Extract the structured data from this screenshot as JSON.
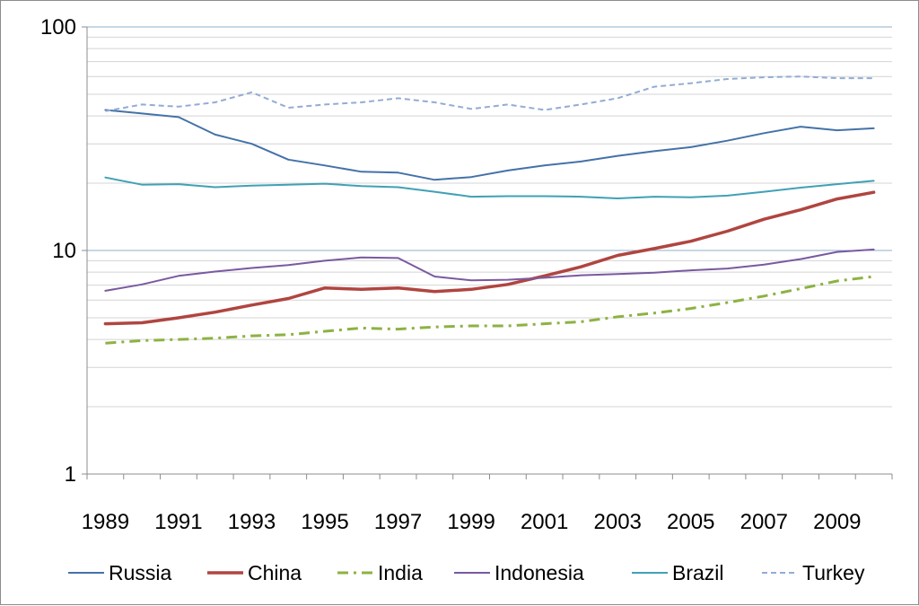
{
  "chart_data": {
    "type": "line",
    "title": "",
    "xlabel": "",
    "ylabel": "",
    "yscale": "log",
    "ylim": [
      1,
      100
    ],
    "xlim": [
      1989,
      2010
    ],
    "y_ticks": [
      {
        "value": 1,
        "label": "1"
      },
      {
        "value": 10,
        "label": "10"
      },
      {
        "value": 100,
        "label": "100"
      }
    ],
    "x_ticks": [
      {
        "value": 1989,
        "label": "1989"
      },
      {
        "value": 1991,
        "label": "1991"
      },
      {
        "value": 1993,
        "label": "1993"
      },
      {
        "value": 1995,
        "label": "1995"
      },
      {
        "value": 1997,
        "label": "1997"
      },
      {
        "value": 1999,
        "label": "1999"
      },
      {
        "value": 2001,
        "label": "2001"
      },
      {
        "value": 2003,
        "label": "2003"
      },
      {
        "value": 2005,
        "label": "2005"
      },
      {
        "value": 2007,
        "label": "2007"
      },
      {
        "value": 2009,
        "label": "2009"
      }
    ],
    "grid": true,
    "legend_position": "bottom",
    "x": [
      1989,
      1990,
      1991,
      1992,
      1993,
      1994,
      1995,
      1996,
      1997,
      1998,
      1999,
      2000,
      2001,
      2002,
      2003,
      2004,
      2005,
      2006,
      2007,
      2008,
      2009,
      2010
    ],
    "series": [
      {
        "name": "Russia",
        "color": "#4472a8",
        "style": "solid",
        "width": 2,
        "values": [
          42.5,
          41,
          39.5,
          33,
          30,
          25.5,
          24,
          22.5,
          22.3,
          20.7,
          21.3,
          22.8,
          24,
          25,
          26.5,
          27.8,
          29,
          31,
          33.5,
          35.8,
          34.5,
          35.2
        ]
      },
      {
        "name": "China",
        "color": "#b04540",
        "style": "solid",
        "width": 3.5,
        "values": [
          4.7,
          4.75,
          5.0,
          5.3,
          5.7,
          6.1,
          6.8,
          6.7,
          6.8,
          6.55,
          6.7,
          7.05,
          7.7,
          8.45,
          9.5,
          10.2,
          11.0,
          12.2,
          13.8,
          15.2,
          17.0,
          18.2
        ]
      },
      {
        "name": "India",
        "color": "#8db243",
        "style": "dashdot",
        "width": 3,
        "values": [
          3.85,
          3.95,
          4.0,
          4.05,
          4.15,
          4.2,
          4.35,
          4.5,
          4.45,
          4.55,
          4.6,
          4.6,
          4.7,
          4.8,
          5.05,
          5.25,
          5.5,
          5.85,
          6.25,
          6.75,
          7.3,
          7.65
        ]
      },
      {
        "name": "Indonesia",
        "color": "#7a59a0",
        "style": "solid",
        "width": 2,
        "values": [
          6.6,
          7.05,
          7.7,
          8.05,
          8.35,
          8.6,
          9.0,
          9.3,
          9.25,
          7.65,
          7.35,
          7.4,
          7.55,
          7.75,
          7.85,
          7.95,
          8.15,
          8.3,
          8.65,
          9.15,
          9.85,
          10.1
        ]
      },
      {
        "name": "Brazil",
        "color": "#40a1b5",
        "style": "solid",
        "width": 2,
        "values": [
          21.2,
          19.7,
          19.8,
          19.2,
          19.5,
          19.7,
          19.9,
          19.4,
          19.2,
          18.3,
          17.4,
          17.5,
          17.5,
          17.4,
          17.1,
          17.4,
          17.3,
          17.6,
          18.3,
          19.1,
          19.8,
          20.5
        ]
      },
      {
        "name": "Turkey",
        "color": "#93acd4",
        "style": "dashed",
        "width": 2,
        "values": [
          42,
          45,
          44,
          46,
          51,
          43.5,
          45,
          46,
          48,
          46,
          43,
          45,
          42.5,
          45,
          48,
          54,
          56,
          58.5,
          59.5,
          60,
          59,
          59
        ]
      }
    ]
  }
}
